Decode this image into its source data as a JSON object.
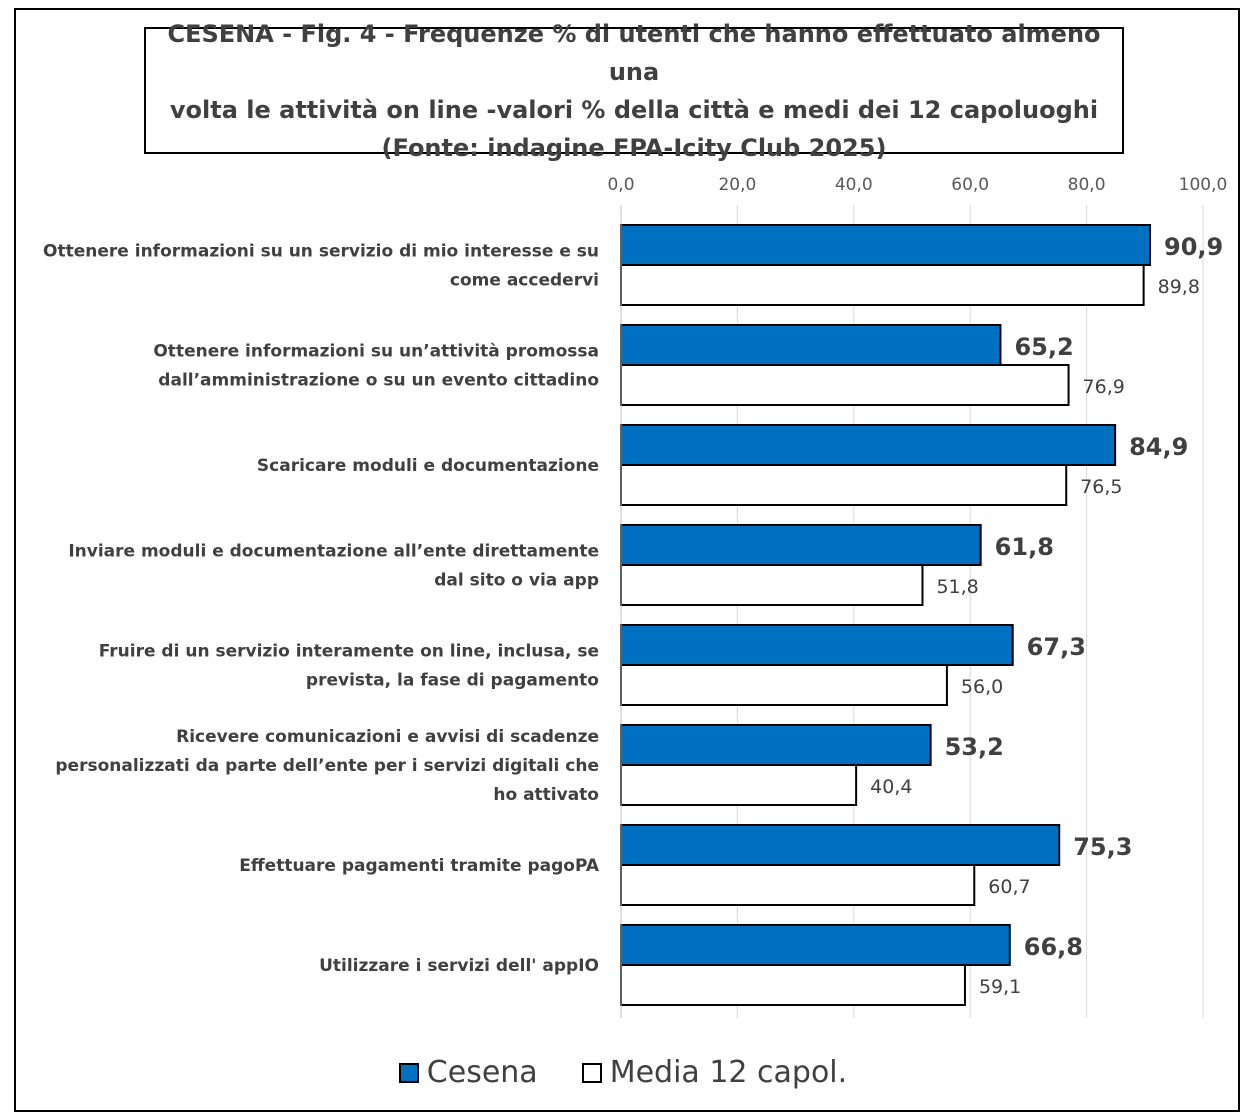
{
  "colors": {
    "cesena": "#0070C0",
    "media": "#FFFFFF",
    "grid": "#D9D9D9",
    "bar_border": "#000000"
  },
  "title_lines": [
    "CESENA - Fig. 4 - Frequenze % di utenti che hanno effettuato almeno una",
    "volta le attività on line  -valori % della città e medi dei 12 capoluoghi",
    "(Fonte: indagine FPA-Icity Club 2025)"
  ],
  "legend": {
    "cesena": "Cesena",
    "media": "Media 12 capol."
  },
  "chart_data": {
    "type": "bar",
    "orientation": "horizontal",
    "title": "CESENA - Fig. 4 - Frequenze % di utenti che hanno effettuato almeno una volta le attività on line  -valori % della città e medi dei 12 capoluoghi (Fonte: indagine FPA-Icity Club 2025)",
    "xlim": [
      0,
      100
    ],
    "x_axis_position": "top",
    "x_ticks": [
      "0,0",
      "20,0",
      "40,0",
      "60,0",
      "80,0",
      "100,0"
    ],
    "grid": true,
    "legend_position": "bottom",
    "categories": [
      [
        "Ottenere informazioni su un servizio di mio interesse e su",
        "come accedervi"
      ],
      [
        "Ottenere informazioni su un’attività promossa",
        "dall’amministrazione o su un evento cittadino"
      ],
      [
        "Scaricare moduli e documentazione"
      ],
      [
        "Inviare moduli e documentazione all’ente direttamente",
        "dal sito o via app"
      ],
      [
        "Fruire di un servizio interamente on line, inclusa, se",
        "prevista, la fase di pagamento"
      ],
      [
        "Ricevere comunicazioni e avvisi di scadenze",
        "personalizzati da parte dell’ente per i servizi digitali che",
        "ho attivato"
      ],
      [
        "Effettuare pagamenti tramite pagoPA"
      ],
      [
        "Utilizzare i servizi dell' appIO"
      ]
    ],
    "series": [
      {
        "name": "Cesena",
        "values": [
          90.9,
          65.2,
          84.9,
          61.8,
          67.3,
          53.2,
          75.3,
          66.8
        ],
        "labels": [
          "90,9",
          "65,2",
          "84,9",
          "61,8",
          "67,3",
          "53,2",
          "75,3",
          "66,8"
        ]
      },
      {
        "name": "Media 12 capol.",
        "values": [
          89.8,
          76.9,
          76.5,
          51.8,
          56.0,
          40.4,
          60.7,
          59.1
        ],
        "labels": [
          "89,8",
          "76,9",
          "76,5",
          "51,8",
          "56,0",
          "40,4",
          "60,7",
          "59,1"
        ]
      }
    ]
  }
}
